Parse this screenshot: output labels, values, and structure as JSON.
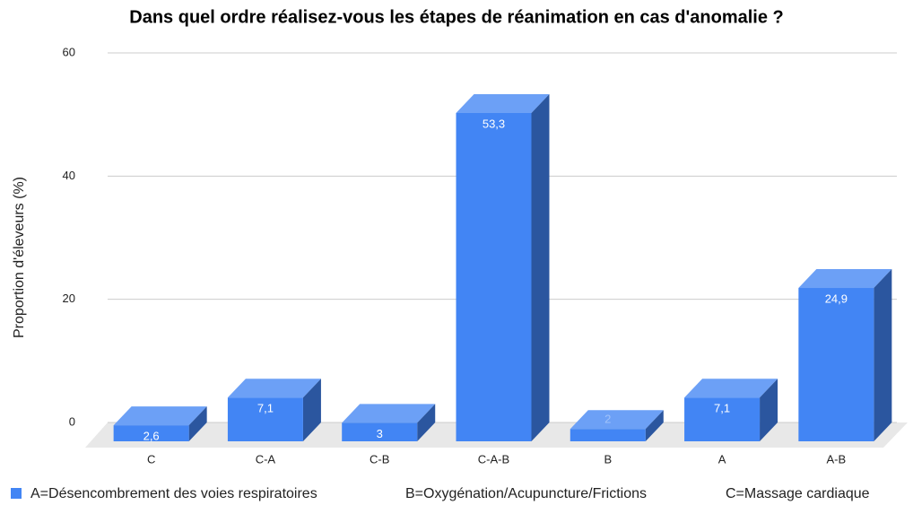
{
  "chart_data": {
    "type": "bar3d",
    "title": "Dans quel ordre réalisez-vous les étapes de réanimation en cas d'anomalie ?",
    "y_label": "Proportion d'éleveurs (%)",
    "categories": [
      "C",
      "C-A",
      "C-B",
      "C-A-B",
      "B",
      "A",
      "A-B"
    ],
    "series": [
      {
        "name": "A=Désencombrement des voies respiratoires",
        "color": "#4285f4",
        "values": [
          2.6,
          7.1,
          3,
          53.3,
          2,
          7.1,
          24.9
        ],
        "value_labels": [
          "2,6",
          "7,1",
          "3",
          "53,3",
          "2",
          "7,1",
          "24,9"
        ]
      }
    ],
    "legend_notes": [
      "B=Oxygénation/Acupuncture/Frictions",
      "C=Massage cardiaque"
    ],
    "ylim": [
      0,
      60
    ],
    "yticks": [
      0,
      20,
      40,
      60
    ],
    "grid": true,
    "legend": "bottom"
  }
}
